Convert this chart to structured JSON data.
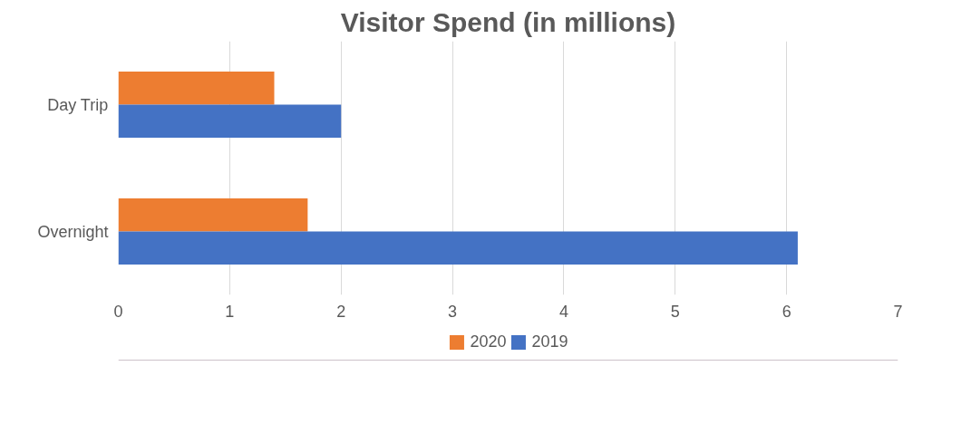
{
  "chart_data": {
    "type": "bar",
    "orientation": "horizontal",
    "title": "Visitor Spend (in millions)",
    "categories": [
      "Day Trip",
      "Overnight"
    ],
    "series": [
      {
        "name": "2020",
        "color": "#ed7d31",
        "values": [
          1.4,
          1.7
        ]
      },
      {
        "name": "2019",
        "color": "#4472c4",
        "values": [
          2.0,
          6.1
        ]
      }
    ],
    "xlim": [
      0,
      7
    ],
    "xticks": [
      0,
      1,
      2,
      3,
      4,
      5,
      6,
      7
    ],
    "grid": "x",
    "legend": "bottom"
  }
}
